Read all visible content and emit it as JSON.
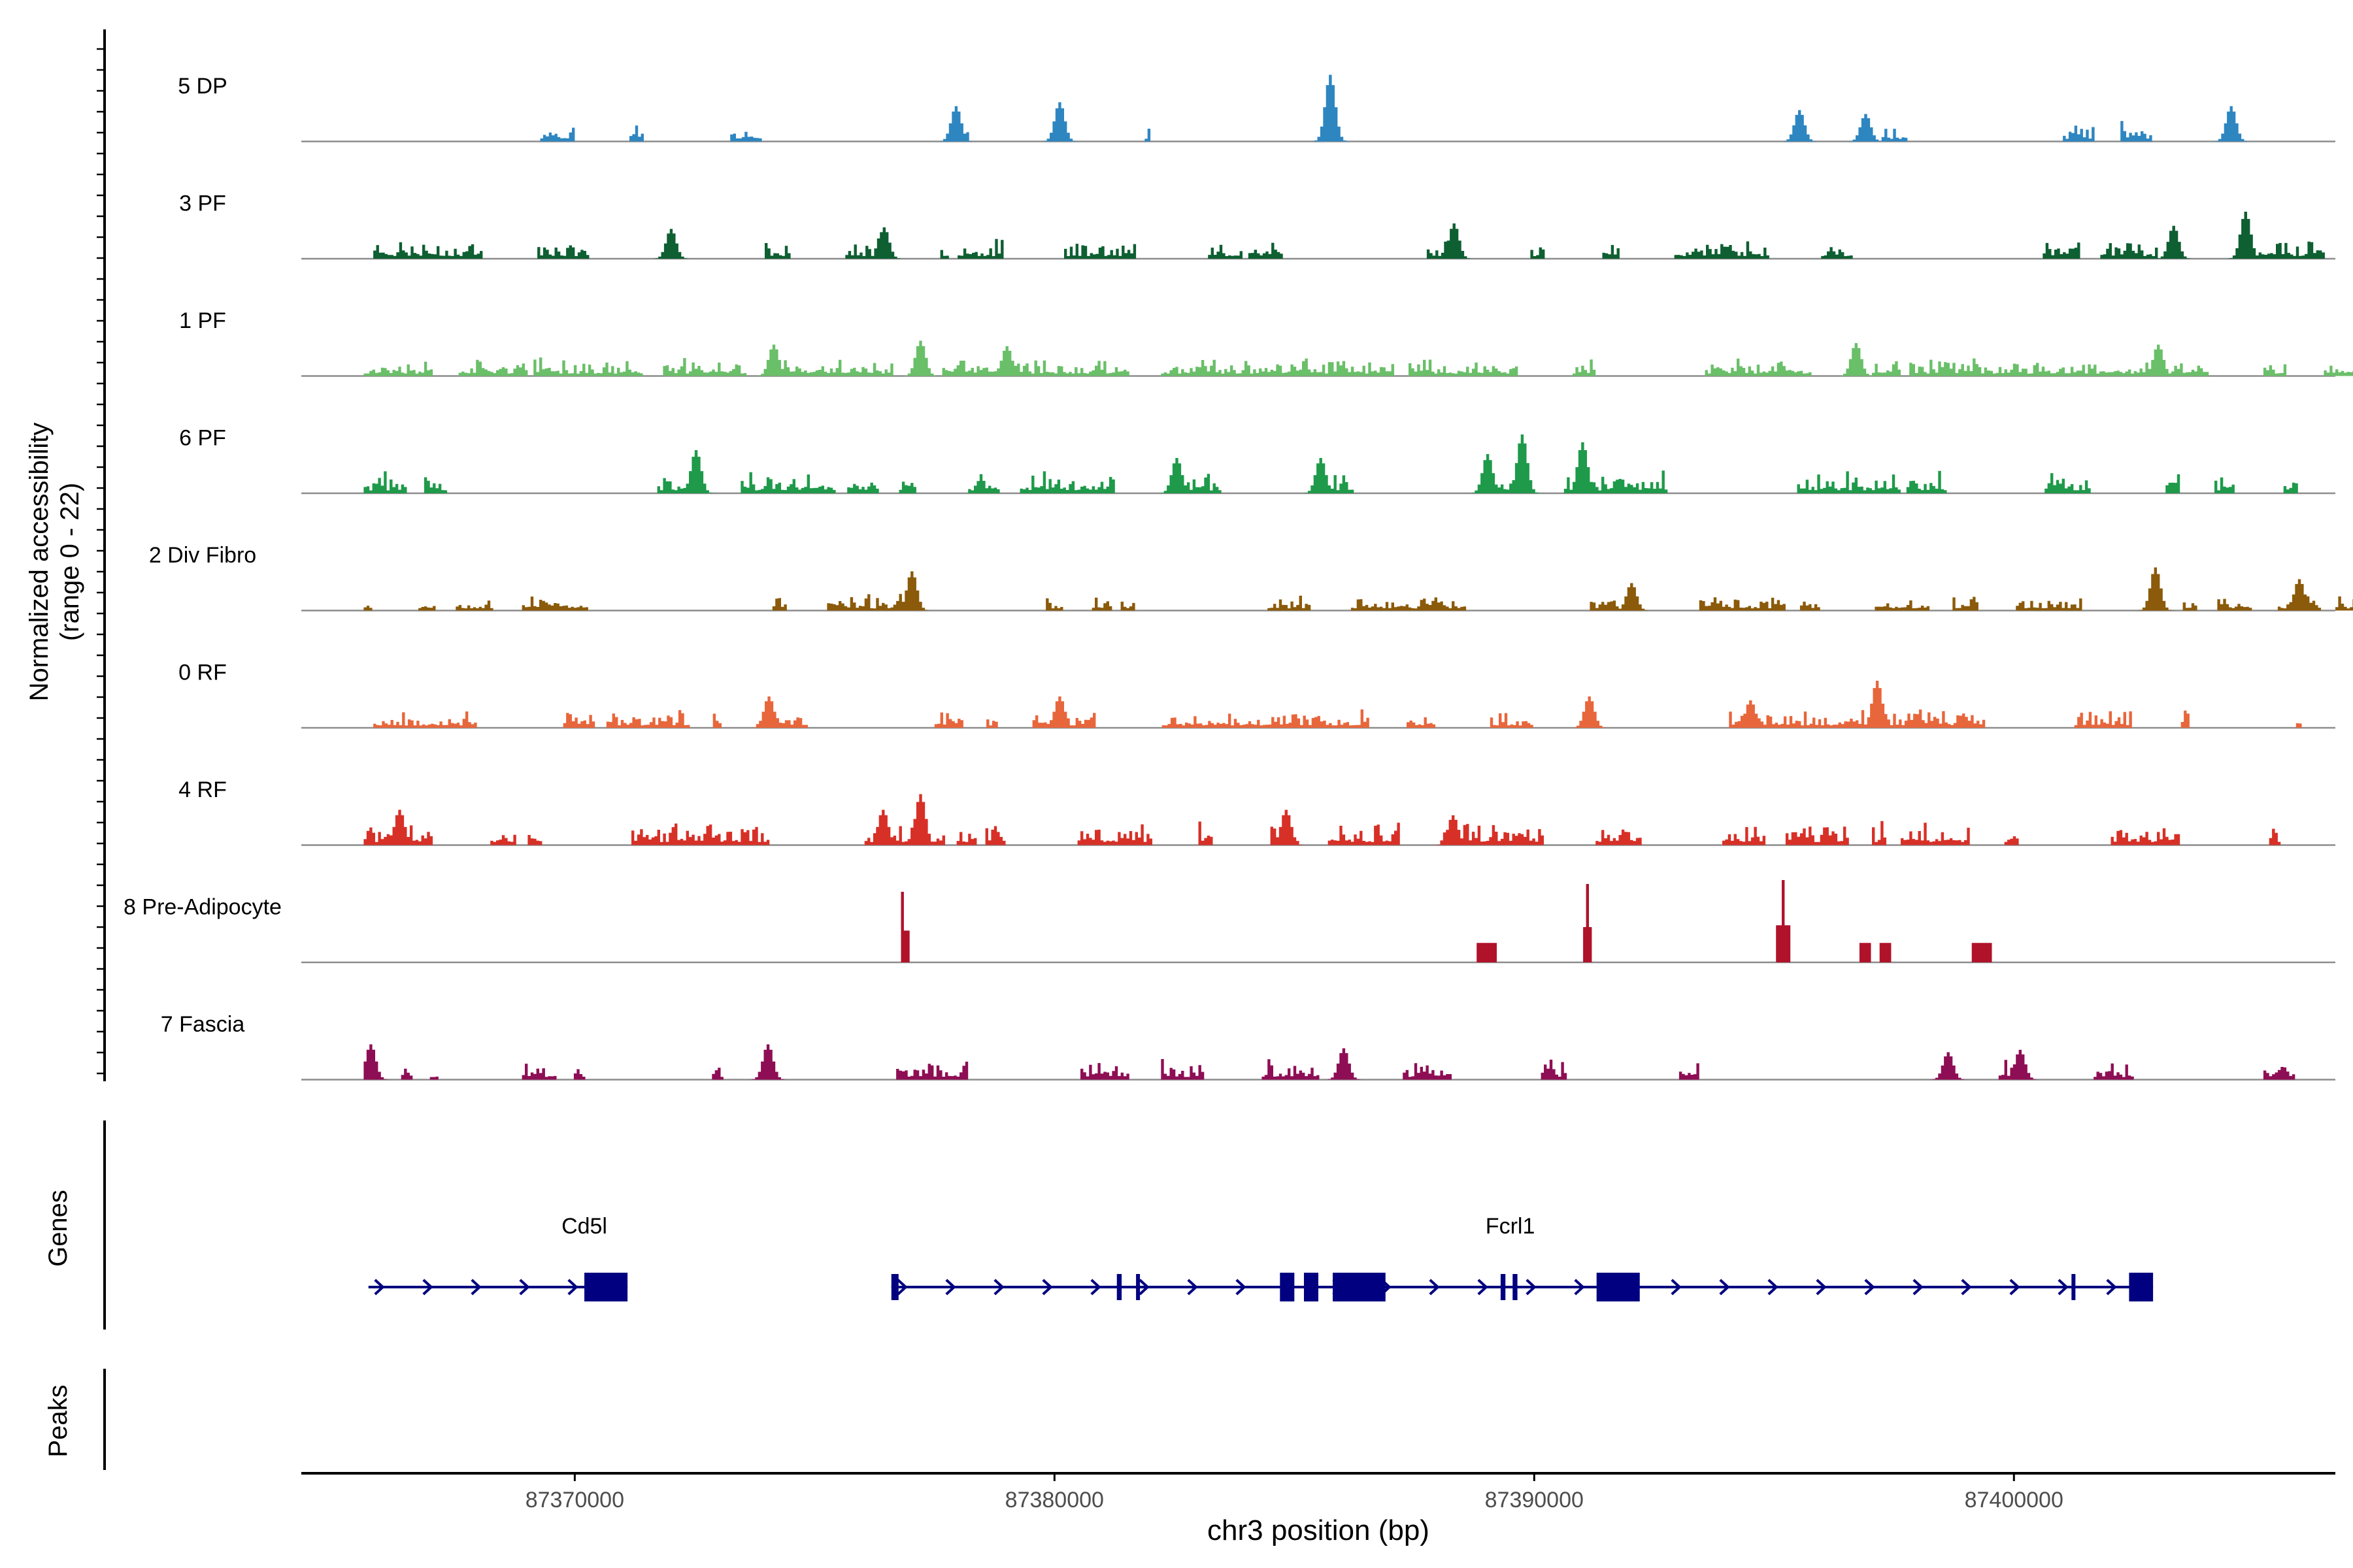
{
  "chart_data": {
    "type": "area",
    "title": "",
    "xlabel": "chr3 position (bp)",
    "ylabel_line1": "Normalized accessibility",
    "ylabel_line2": "(range 0 - 22)",
    "y_range": [
      0,
      22
    ],
    "xlim": [
      87364300,
      87406700
    ],
    "x_ticks": [
      87370000,
      87380000,
      87390000,
      87400000
    ],
    "x_tick_labels": [
      "87370000",
      "87380000",
      "87390000",
      "87400000"
    ],
    "series": [
      {
        "name": "5 DP",
        "color": "#2E86C1",
        "range": [
          87367600,
          87407400
        ],
        "density": 0.22,
        "amp": 0.22,
        "seed": 11,
        "peaks": [
          [
            87385700,
            0.85
          ],
          [
            87380100,
            0.5
          ],
          [
            87377900,
            0.45
          ],
          [
            87404500,
            0.45
          ],
          [
            87395500,
            0.4
          ],
          [
            87396900,
            0.35
          ]
        ]
      },
      {
        "name": "3 PF",
        "color": "#0E5F32",
        "range": [
          87365800,
          87407400
        ],
        "density": 0.45,
        "amp": 0.22,
        "seed": 23,
        "peaks": [
          [
            87404800,
            0.6
          ],
          [
            87388300,
            0.45
          ],
          [
            87376400,
            0.4
          ],
          [
            87372000,
            0.38
          ],
          [
            87403300,
            0.42
          ]
        ]
      },
      {
        "name": "1 PF",
        "color": "#6ABF69",
        "range": [
          87365600,
          87407400
        ],
        "density": 0.75,
        "amp": 0.2,
        "seed": 37,
        "peaks": [
          [
            87377200,
            0.45
          ],
          [
            87374100,
            0.4
          ],
          [
            87379000,
            0.38
          ],
          [
            87396700,
            0.42
          ],
          [
            87403000,
            0.4
          ]
        ]
      },
      {
        "name": "6 PF",
        "color": "#1E9A4A",
        "range": [
          87365600,
          87407400
        ],
        "density": 0.5,
        "amp": 0.24,
        "seed": 41,
        "peaks": [
          [
            87389700,
            0.75
          ],
          [
            87391000,
            0.65
          ],
          [
            87372500,
            0.55
          ],
          [
            87382500,
            0.45
          ],
          [
            87385500,
            0.45
          ],
          [
            87389000,
            0.5
          ]
        ]
      },
      {
        "name": "2 Div Fibro",
        "color": "#8B5A0A",
        "range": [
          87365600,
          87407400
        ],
        "density": 0.4,
        "amp": 0.18,
        "seed": 53,
        "peaks": [
          [
            87377000,
            0.5
          ],
          [
            87402900,
            0.55
          ],
          [
            87392000,
            0.35
          ],
          [
            87405900,
            0.4
          ]
        ]
      },
      {
        "name": "0 RF",
        "color": "#E8663C",
        "range": [
          87365800,
          87407400
        ],
        "density": 0.55,
        "amp": 0.2,
        "seed": 67,
        "peaks": [
          [
            87397100,
            0.6
          ],
          [
            87374000,
            0.4
          ],
          [
            87380100,
            0.4
          ],
          [
            87391100,
            0.4
          ],
          [
            87394500,
            0.35
          ]
        ]
      },
      {
        "name": "4 RF",
        "color": "#D73027",
        "range": [
          87365600,
          87407400
        ],
        "density": 0.6,
        "amp": 0.26,
        "seed": 71,
        "peaks": [
          [
            87377200,
            0.65
          ],
          [
            87366300,
            0.45
          ],
          [
            87388300,
            0.38
          ],
          [
            87384800,
            0.45
          ],
          [
            87376400,
            0.45
          ]
        ]
      },
      {
        "name": "8 Pre-Adipocyte",
        "color": "#B0122A",
        "range": [
          87376800,
          87399800
        ],
        "density": 0,
        "amp": 0,
        "seed": 83,
        "blocks": [
          [
            87376700,
            87376900,
            0.9
          ],
          [
            87388800,
            87388950,
            0.55
          ],
          [
            87389000,
            87389150,
            0.55
          ],
          [
            87391000,
            87391150,
            1.0
          ],
          [
            87395050,
            87395300,
            1.05
          ],
          [
            87396800,
            87396950,
            0.55
          ],
          [
            87397200,
            87397350,
            0.55
          ],
          [
            87399100,
            87399250,
            0.55
          ],
          [
            87399300,
            87399450,
            0.55
          ]
        ]
      },
      {
        "name": "7 Fascia",
        "color": "#8E0E55",
        "range": [
          87365600,
          87405900
        ],
        "density": 0.4,
        "amp": 0.22,
        "seed": 97,
        "peaks": [
          [
            87365700,
            0.45
          ],
          [
            87374000,
            0.45
          ],
          [
            87386000,
            0.4
          ],
          [
            87400100,
            0.38
          ],
          [
            87398600,
            0.35
          ]
        ]
      }
    ],
    "gene_track": {
      "label": "Genes",
      "genes": [
        {
          "name": "Cd5l",
          "label_x": 87370200,
          "start": 87365700,
          "end": 87371100,
          "strand": "+",
          "exons": [
            [
              87370200,
              87371100
            ]
          ]
        },
        {
          "name": "Fcrl1",
          "label_x": 87389500,
          "start": 87376600,
          "end": 87402900,
          "strand": "+",
          "exons": [
            [
              87376600,
              87376750
            ],
            [
              87381300,
              87381400
            ],
            [
              87381700,
              87381750
            ],
            [
              87384700,
              87385000
            ],
            [
              87385200,
              87385500
            ],
            [
              87385800,
              87386900
            ],
            [
              87389300,
              87389400
            ],
            [
              87389550,
              87389650
            ],
            [
              87391300,
              87392200
            ],
            [
              87401200,
              87401260
            ],
            [
              87402400,
              87402900
            ]
          ]
        }
      ]
    },
    "peaks_track": {
      "label": "Peaks",
      "peaks": []
    }
  }
}
